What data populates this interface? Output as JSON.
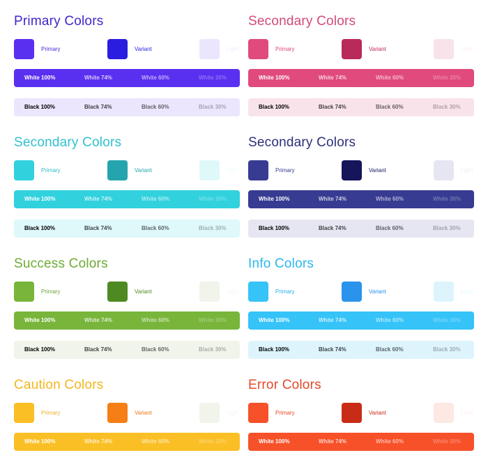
{
  "sections": [
    {
      "title": "Primary Colors",
      "title_color": "#4127c9",
      "swatches": [
        {
          "label": "Primary",
          "color": "#5a30f0",
          "label_color": "#4a28d6"
        },
        {
          "label": "Variant",
          "color": "#2a1de0",
          "label_color": "#2a1de0"
        },
        {
          "label": "Light",
          "color": "#ebe6fd",
          "label_color": "#f1eefe"
        }
      ],
      "white_bar": {
        "bg": "#5a30f0",
        "labels": [
          "White 100%",
          "White 74%",
          "White 60%",
          "White 30%"
        ]
      },
      "black_bar": {
        "bg": "#ebe6fd",
        "labels": [
          "Black 100%",
          "Black 74%",
          "Black 60%",
          "Black 30%"
        ]
      }
    },
    {
      "title": "Secondary Colors",
      "title_color": "#d34a78",
      "swatches": [
        {
          "label": "Primary",
          "color": "#e04a7d",
          "label_color": "#d94a7b"
        },
        {
          "label": "Variant",
          "color": "#b82a5a",
          "label_color": "#b82a5a"
        },
        {
          "label": "Light",
          "color": "#f9e3ea",
          "label_color": "#fbeef2"
        }
      ],
      "white_bar": {
        "bg": "#e04a7d",
        "labels": [
          "White 100%",
          "White 74%",
          "White 60%",
          "White 30%"
        ]
      },
      "black_bar": {
        "bg": "#f9e3ea",
        "labels": [
          "Black 100%",
          "Black 74%",
          "Black 60%",
          "Black 30%"
        ]
      }
    },
    {
      "title": "Secondary Colors",
      "title_color": "#2fc1cf",
      "swatches": [
        {
          "label": "Primary",
          "color": "#31d1de",
          "label_color": "#2fbccb"
        },
        {
          "label": "Variant",
          "color": "#24a5ae",
          "label_color": "#24a5ae"
        },
        {
          "label": "Light",
          "color": "#dff8fa",
          "label_color": "#ebfbfc"
        }
      ],
      "white_bar": {
        "bg": "#31d1de",
        "labels": [
          "White 100%",
          "White 74%",
          "White 60%",
          "White 30%"
        ]
      },
      "black_bar": {
        "bg": "#dff8fa",
        "labels": [
          "Black 100%",
          "Black 74%",
          "Black 60%",
          "Black 30%"
        ]
      }
    },
    {
      "title": "Secondary Colors",
      "title_color": "#2c2f7a",
      "swatches": [
        {
          "label": "Primary",
          "color": "#373b91",
          "label_color": "#373b91"
        },
        {
          "label": "Variant",
          "color": "#16145a",
          "label_color": "#16145a"
        },
        {
          "label": "Light",
          "color": "#e6e6f2",
          "label_color": "#eeeef6"
        }
      ],
      "white_bar": {
        "bg": "#373b91",
        "labels": [
          "White 100%",
          "White 74%",
          "White 60%",
          "White 30%"
        ]
      },
      "black_bar": {
        "bg": "#e6e6f2",
        "labels": [
          "Black 100%",
          "Black 74%",
          "Black 60%",
          "Black 30%"
        ]
      }
    },
    {
      "title": "Success Colors",
      "title_color": "#6cab33",
      "swatches": [
        {
          "label": "Primary",
          "color": "#78b53a",
          "label_color": "#6ea436"
        },
        {
          "label": "Variant",
          "color": "#4e8a21",
          "label_color": "#4e8a21"
        },
        {
          "label": "Light",
          "color": "#f1f4ea",
          "label_color": "#f5f7f0"
        }
      ],
      "white_bar": {
        "bg": "#78b53a",
        "labels": [
          "White 100%",
          "White 74%",
          "White 60%",
          "White 30%"
        ]
      },
      "black_bar": {
        "bg": "#f1f4ea",
        "labels": [
          "Black 100%",
          "Black 74%",
          "Black 60%",
          "Black 30%"
        ]
      }
    },
    {
      "title": "Info Colors",
      "title_color": "#2bb7ee",
      "swatches": [
        {
          "label": "Primary",
          "color": "#35c3f8",
          "label_color": "#2bb1e8"
        },
        {
          "label": "Variant",
          "color": "#2a93ec",
          "label_color": "#2a93ec"
        },
        {
          "label": "Light",
          "color": "#ddf4fd",
          "label_color": "#e9f8fe"
        }
      ],
      "white_bar": {
        "bg": "#35c3f8",
        "labels": [
          "White 100%",
          "White 74%",
          "White 60%",
          "White 30%"
        ]
      },
      "black_bar": {
        "bg": "#ddf4fd",
        "labels": [
          "Black 100%",
          "Black 74%",
          "Black 60%",
          "Black 30%"
        ]
      }
    },
    {
      "title": "Caution Colors",
      "title_color": "#f3b61f",
      "swatches": [
        {
          "label": "Primary",
          "color": "#fbbf26",
          "label_color": "#eab22a"
        },
        {
          "label": "Variant",
          "color": "#f57f14",
          "label_color": "#e9791a"
        },
        {
          "label": "Light",
          "color": "#f1f4ea",
          "label_color": "#f5f7f0"
        }
      ],
      "white_bar": {
        "bg": "#fbbf26",
        "labels": [
          "White 100%",
          "White 74%",
          "White 60%",
          "White 30%"
        ]
      },
      "black_bar": null
    },
    {
      "title": "Error Colors",
      "title_color": "#e34a2a",
      "swatches": [
        {
          "label": "Primary",
          "color": "#f7512a",
          "label_color": "#e64a28"
        },
        {
          "label": "Variant",
          "color": "#c82c17",
          "label_color": "#c82c17"
        },
        {
          "label": "Light",
          "color": "#fde8e4",
          "label_color": "#fdf0ed"
        }
      ],
      "white_bar": {
        "bg": "#f7512a",
        "labels": [
          "White 100%",
          "White 74%",
          "White 60%",
          "White 30%"
        ]
      },
      "black_bar": null
    }
  ]
}
